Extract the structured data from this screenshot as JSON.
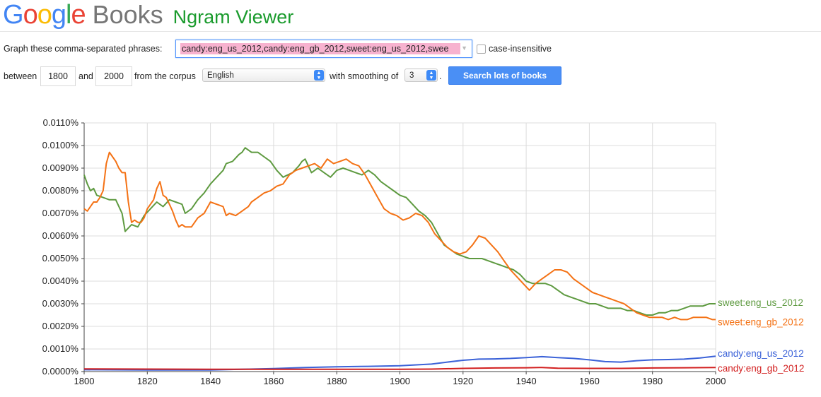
{
  "header": {
    "logo_letters": [
      {
        "ch": "G",
        "color": "#4285f4"
      },
      {
        "ch": "o",
        "color": "#ea4335"
      },
      {
        "ch": "o",
        "color": "#fbbc05"
      },
      {
        "ch": "g",
        "color": "#4285f4"
      },
      {
        "ch": "l",
        "color": "#34a853"
      },
      {
        "ch": "e",
        "color": "#ea4335"
      }
    ],
    "books": "Books",
    "title": "Ngram Viewer"
  },
  "form": {
    "phrases_label": "Graph these comma-separated phrases:",
    "phrases_value": "candy:eng_us_2012,candy:eng_gb_2012,sweet:eng_us_2012,swee",
    "case_insensitive": "case-insensitive",
    "between": "between",
    "start_year": "1800",
    "and": "and",
    "end_year": "2000",
    "from_corpus": "from the corpus",
    "corpus": "English",
    "with_smoothing": "with smoothing of",
    "smoothing": "3",
    "period": ".",
    "search_button": "Search lots of books"
  },
  "chart_data": {
    "type": "line",
    "xlim": [
      1800,
      2000
    ],
    "ylim": [
      0,
      0.011
    ],
    "x_ticks": [
      "1800",
      "1820",
      "1840",
      "1860",
      "1880",
      "1900",
      "1920",
      "1940",
      "1960",
      "1980",
      "2000"
    ],
    "y_ticks": [
      "0.0000%",
      "0.0010%",
      "0.0020%",
      "0.0030%",
      "0.0040%",
      "0.0050%",
      "0.0060%",
      "0.0070%",
      "0.0080%",
      "0.0090%",
      "0.0100%",
      "0.0110%"
    ],
    "grid": true,
    "legend": "right-end labels",
    "series": [
      {
        "name": "sweet:eng_us_2012",
        "color": "#5e9a40",
        "x": [
          1800,
          1801,
          1802,
          1803,
          1804,
          1806,
          1808,
          1810,
          1812,
          1813,
          1815,
          1817,
          1819,
          1821,
          1823,
          1825,
          1827,
          1829,
          1831,
          1832,
          1834,
          1836,
          1838,
          1840,
          1842,
          1844,
          1845,
          1847,
          1849,
          1850,
          1851,
          1853,
          1855,
          1857,
          1859,
          1861,
          1863,
          1866,
          1868,
          1869,
          1870,
          1872,
          1874,
          1876,
          1878,
          1880,
          1882,
          1884,
          1886,
          1888,
          1890,
          1892,
          1894,
          1896,
          1898,
          1900,
          1902,
          1904,
          1906,
          1908,
          1910,
          1912,
          1914,
          1916,
          1918,
          1920,
          1922,
          1924,
          1926,
          1928,
          1930,
          1932,
          1934,
          1936,
          1938,
          1940,
          1942,
          1944,
          1946,
          1948,
          1950,
          1952,
          1954,
          1956,
          1958,
          1960,
          1962,
          1964,
          1966,
          1968,
          1970,
          1972,
          1974,
          1976,
          1978,
          1980,
          1982,
          1984,
          1986,
          1988,
          1990,
          1992,
          1994,
          1996,
          1998,
          2000
        ],
        "y": [
          0.0087,
          0.0083,
          0.008,
          0.0081,
          0.0078,
          0.0077,
          0.0076,
          0.0076,
          0.007,
          0.0062,
          0.0065,
          0.0064,
          0.0069,
          0.0072,
          0.0075,
          0.0073,
          0.0076,
          0.0075,
          0.0074,
          0.007,
          0.0072,
          0.0076,
          0.0079,
          0.0083,
          0.0086,
          0.0089,
          0.0092,
          0.0093,
          0.0096,
          0.0097,
          0.0099,
          0.0097,
          0.0097,
          0.0095,
          0.0093,
          0.0089,
          0.0086,
          0.0088,
          0.0091,
          0.0093,
          0.0094,
          0.0088,
          0.009,
          0.0088,
          0.0086,
          0.0089,
          0.009,
          0.0089,
          0.0088,
          0.0087,
          0.0089,
          0.0087,
          0.0084,
          0.0082,
          0.008,
          0.0078,
          0.0077,
          0.0074,
          0.0071,
          0.0069,
          0.0066,
          0.0061,
          0.0056,
          0.0054,
          0.0052,
          0.0051,
          0.005,
          0.005,
          0.005,
          0.0049,
          0.0048,
          0.0047,
          0.0046,
          0.0045,
          0.0043,
          0.004,
          0.0039,
          0.0039,
          0.0039,
          0.0038,
          0.0036,
          0.0034,
          0.0033,
          0.0032,
          0.0031,
          0.003,
          0.003,
          0.0029,
          0.0028,
          0.0028,
          0.0028,
          0.0027,
          0.0027,
          0.0026,
          0.0025,
          0.0025,
          0.0026,
          0.0026,
          0.0027,
          0.0027,
          0.0028,
          0.0029,
          0.0029,
          0.0029,
          0.003,
          0.003
        ]
      },
      {
        "name": "sweet:eng_gb_2012",
        "color": "#f47215",
        "x": [
          1800,
          1801,
          1802,
          1803,
          1804,
          1805,
          1806,
          1807,
          1808,
          1809,
          1810,
          1811,
          1812,
          1813,
          1814,
          1815,
          1816,
          1817,
          1818,
          1819,
          1820,
          1821,
          1822,
          1823,
          1824,
          1825,
          1826,
          1827,
          1828,
          1829,
          1830,
          1831,
          1832,
          1834,
          1836,
          1838,
          1840,
          1842,
          1844,
          1845,
          1846,
          1848,
          1850,
          1852,
          1853,
          1855,
          1857,
          1859,
          1861,
          1863,
          1865,
          1867,
          1869,
          1871,
          1873,
          1875,
          1877,
          1879,
          1881,
          1883,
          1885,
          1887,
          1889,
          1891,
          1893,
          1895,
          1897,
          1899,
          1901,
          1903,
          1905,
          1907,
          1909,
          1911,
          1913,
          1915,
          1917,
          1919,
          1921,
          1923,
          1925,
          1927,
          1929,
          1931,
          1933,
          1935,
          1937,
          1939,
          1941,
          1943,
          1945,
          1947,
          1949,
          1951,
          1953,
          1955,
          1957,
          1959,
          1961,
          1963,
          1965,
          1967,
          1969,
          1971,
          1973,
          1975,
          1977,
          1979,
          1981,
          1983,
          1985,
          1987,
          1989,
          1991,
          1993,
          1995,
          1997,
          1999,
          2000
        ],
        "y": [
          0.0072,
          0.0071,
          0.0073,
          0.0075,
          0.0075,
          0.0077,
          0.008,
          0.0092,
          0.0097,
          0.0095,
          0.0093,
          0.009,
          0.0088,
          0.0088,
          0.0075,
          0.0066,
          0.0067,
          0.0066,
          0.0066,
          0.0068,
          0.0072,
          0.0074,
          0.0076,
          0.0081,
          0.0084,
          0.0078,
          0.0077,
          0.0074,
          0.0071,
          0.0067,
          0.0064,
          0.0065,
          0.0064,
          0.0064,
          0.0068,
          0.007,
          0.0075,
          0.0074,
          0.0073,
          0.0069,
          0.007,
          0.0069,
          0.0071,
          0.0073,
          0.0075,
          0.0077,
          0.0079,
          0.008,
          0.0082,
          0.0083,
          0.0087,
          0.0089,
          0.009,
          0.0091,
          0.0092,
          0.009,
          0.0094,
          0.0092,
          0.0093,
          0.0094,
          0.0092,
          0.0091,
          0.0087,
          0.0082,
          0.0077,
          0.0072,
          0.007,
          0.0069,
          0.0067,
          0.0068,
          0.007,
          0.0069,
          0.0066,
          0.0061,
          0.0058,
          0.0055,
          0.0053,
          0.0052,
          0.0053,
          0.0056,
          0.006,
          0.0059,
          0.0056,
          0.0053,
          0.0049,
          0.0045,
          0.0042,
          0.0039,
          0.0036,
          0.0039,
          0.0041,
          0.0043,
          0.0045,
          0.0045,
          0.0044,
          0.0041,
          0.0039,
          0.0037,
          0.0035,
          0.0034,
          0.0033,
          0.0032,
          0.0031,
          0.003,
          0.0028,
          0.0026,
          0.0025,
          0.0024,
          0.0024,
          0.0024,
          0.0023,
          0.0024,
          0.0023,
          0.0023,
          0.0024,
          0.0024,
          0.0024,
          0.0023,
          0.0023
        ]
      },
      {
        "name": "candy:eng_us_2012",
        "color": "#3b62d8",
        "x": [
          1800,
          1820,
          1840,
          1850,
          1860,
          1870,
          1880,
          1890,
          1900,
          1910,
          1915,
          1920,
          1925,
          1930,
          1935,
          1940,
          1945,
          1950,
          1955,
          1960,
          1965,
          1970,
          1975,
          1980,
          1985,
          1990,
          1995,
          2000
        ],
        "y": [
          8e-05,
          7e-05,
          7e-05,
          0.0001,
          0.00013,
          0.00018,
          0.00021,
          0.00023,
          0.00026,
          0.00033,
          0.00042,
          0.0005,
          0.00055,
          0.00056,
          0.00058,
          0.00062,
          0.00066,
          0.00062,
          0.00058,
          0.00052,
          0.00044,
          0.00042,
          0.00048,
          0.00052,
          0.00053,
          0.00055,
          0.0006,
          0.00068
        ]
      },
      {
        "name": "candy:eng_gb_2012",
        "color": "#d21f1f",
        "x": [
          1800,
          1820,
          1840,
          1860,
          1880,
          1900,
          1910,
          1920,
          1930,
          1940,
          1945,
          1950,
          1960,
          1970,
          1980,
          1990,
          2000
        ],
        "y": [
          0.00012,
          0.00011,
          0.0001,
          0.0001,
          0.0001,
          0.0001,
          0.00011,
          0.00014,
          0.00016,
          0.00017,
          0.00018,
          0.00015,
          0.00014,
          0.00014,
          0.00016,
          0.00017,
          0.00018
        ]
      }
    ]
  }
}
